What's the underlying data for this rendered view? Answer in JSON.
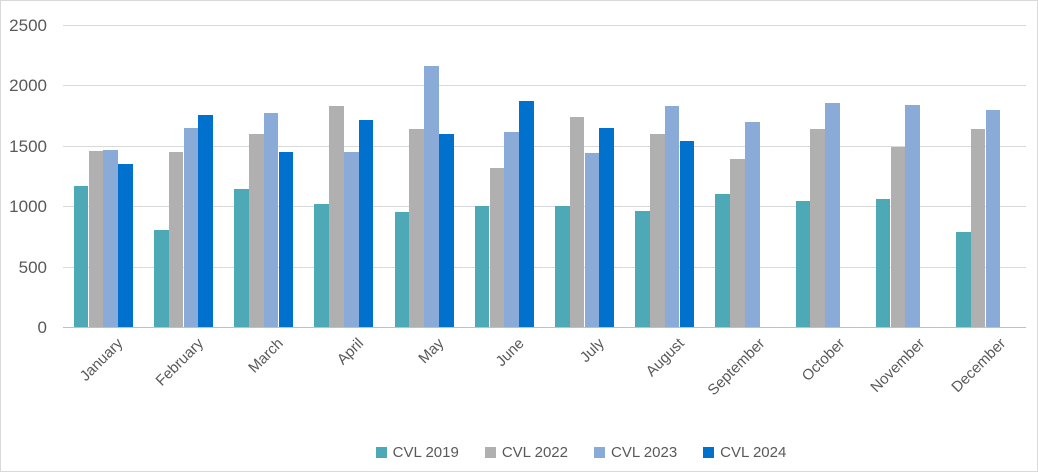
{
  "chart_data": {
    "type": "bar",
    "title": "",
    "xlabel": "",
    "ylabel": "",
    "categories": [
      "January",
      "February",
      "March",
      "April",
      "May",
      "June",
      "July",
      "August",
      "September",
      "October",
      "November",
      "December"
    ],
    "series": [
      {
        "name": "CVL 2019",
        "color": "#4CA9B5",
        "values": [
          1170,
          800,
          1140,
          1020,
          950,
          1000,
          1000,
          960,
          1100,
          1040,
          1060,
          785
        ]
      },
      {
        "name": "CVL 2022",
        "color": "#B0B0B0",
        "values": [
          1460,
          1450,
          1600,
          1825,
          1635,
          1320,
          1740,
          1600,
          1390,
          1640,
          1490,
          1640
        ]
      },
      {
        "name": "CVL 2023",
        "color": "#8AABD8",
        "values": [
          1465,
          1645,
          1770,
          1450,
          2160,
          1615,
          1440,
          1825,
          1695,
          1855,
          1840,
          1795
        ]
      },
      {
        "name": "CVL 2024",
        "color": "#0072CE",
        "values": [
          1350,
          1755,
          1450,
          1710,
          1600,
          1870,
          1650,
          1540,
          null,
          null,
          null,
          null
        ]
      }
    ],
    "y_axis": {
      "min": 0,
      "max": 2500,
      "step": 500,
      "tick_labels": [
        "0",
        "500",
        "1000",
        "1500",
        "2000",
        "2500"
      ]
    },
    "x_label_rotation_deg": -45,
    "grid": true,
    "legend": {
      "position": "bottom"
    },
    "colors": {
      "axis_text": "#595959",
      "gridline": "#d9d9d9",
      "zero_line": "#c0c0c0",
      "background": "#ffffff",
      "border": "#d9d9d9"
    }
  }
}
